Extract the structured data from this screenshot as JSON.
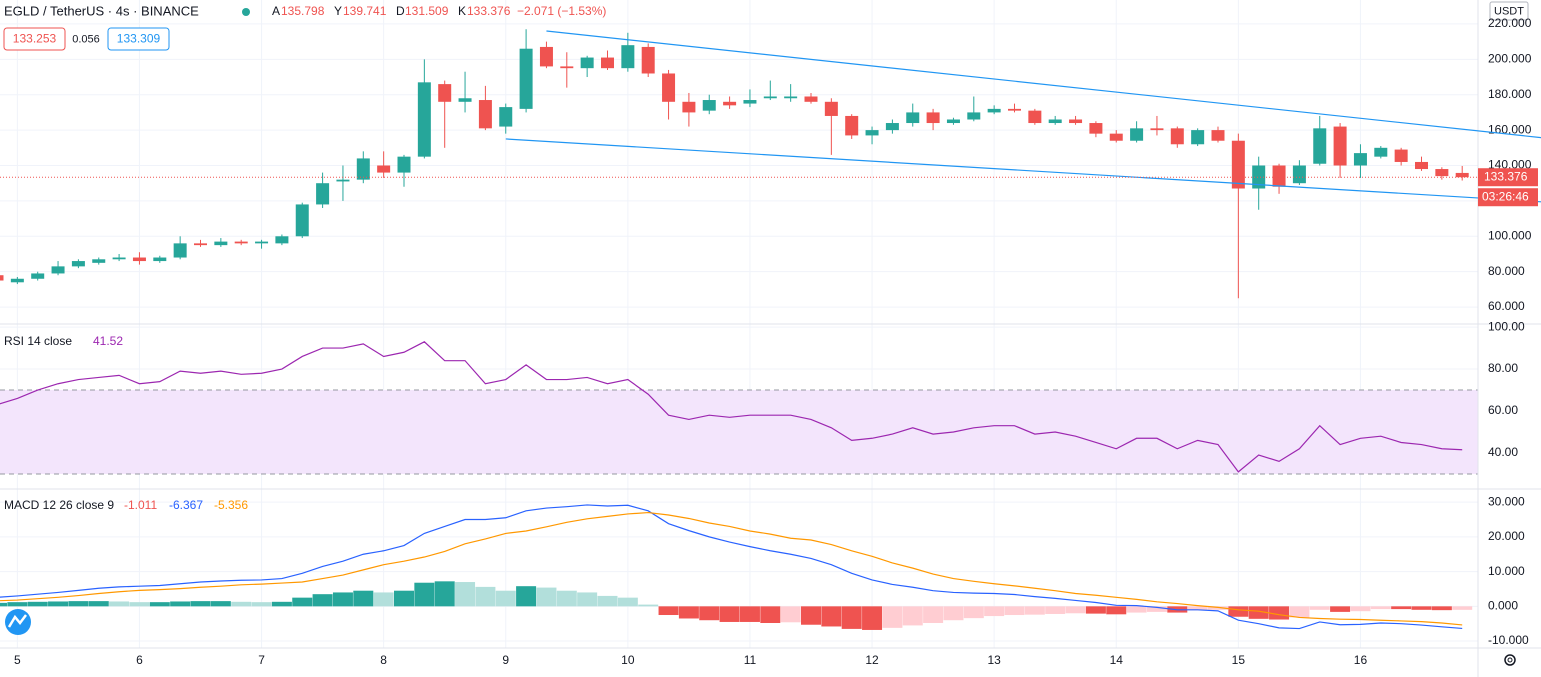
{
  "chart_data": [
    {
      "type": "candlestick",
      "title": "EGLD / TetherUS · 4s · BINANCE",
      "ohlc_header": {
        "open": "A",
        "high": "Y",
        "low": "D",
        "close": "K",
        "change": "−2.071 (−1.53%)"
      },
      "quote_boxes": {
        "bid": "133.253",
        "spread": "0.056",
        "ask": "133.309"
      },
      "currency": "USDT",
      "countdown": "03:26:46",
      "up_color": "#26a69a",
      "down_color": "#ef5350",
      "trendline_color": "#2196f3",
      "categories": [
        null,
        "5",
        null,
        null,
        null,
        null,
        null,
        "6",
        null,
        null,
        null,
        null,
        null,
        "7",
        null,
        null,
        null,
        null,
        null,
        "8",
        null,
        null,
        null,
        null,
        null,
        "9",
        null,
        null,
        null,
        null,
        null,
        "10",
        null,
        null,
        null,
        null,
        null,
        "11",
        null,
        null,
        null,
        null,
        null,
        "12",
        null,
        null,
        null,
        null,
        null,
        "13",
        null,
        null,
        null,
        null,
        null,
        "14",
        null,
        null,
        null,
        null,
        null,
        "15",
        null,
        null,
        null,
        null,
        null,
        "16",
        null,
        null,
        null,
        null,
        null
      ],
      "open": [
        78,
        74,
        76,
        79,
        83,
        85,
        87,
        88,
        86,
        88,
        96,
        95,
        97,
        96,
        96,
        100,
        118,
        131,
        132,
        140,
        136,
        145,
        186,
        176,
        177,
        162,
        172,
        207,
        196,
        195,
        201,
        195,
        207,
        192,
        176,
        171,
        176,
        175,
        178,
        178,
        179,
        176,
        168,
        157,
        160,
        164,
        170,
        164,
        166,
        170,
        172,
        171,
        164,
        166,
        164,
        158,
        154,
        161,
        161,
        152,
        160,
        154,
        127,
        140,
        130,
        141,
        162,
        140,
        145,
        149,
        142,
        138,
        135.798
      ],
      "high": [
        80,
        77,
        80,
        86,
        87,
        88,
        90,
        91,
        89,
        100,
        98,
        99,
        98,
        98,
        101,
        119,
        136,
        140,
        148,
        148,
        146,
        200,
        188,
        193,
        185,
        175,
        217,
        210,
        204,
        202,
        205,
        215,
        209,
        194,
        181,
        180,
        179,
        183,
        188,
        186,
        181,
        178,
        169,
        162,
        166,
        175,
        172,
        167,
        179,
        174,
        175,
        172,
        168,
        168,
        165,
        160,
        165,
        168,
        162,
        161,
        162,
        158,
        145,
        141,
        143,
        168,
        164,
        152,
        151,
        150,
        145,
        139,
        139.741
      ],
      "low": [
        74,
        73,
        75,
        78,
        82,
        84,
        86,
        84,
        85,
        87,
        94,
        94,
        95,
        93,
        95,
        99,
        116,
        120,
        130,
        133,
        128,
        144,
        150,
        170,
        160,
        158,
        170,
        195,
        184,
        190,
        194,
        193,
        190,
        166,
        162,
        169,
        172,
        173,
        177,
        176,
        175,
        146,
        155,
        152,
        158,
        162,
        160,
        163,
        165,
        169,
        170,
        163,
        163,
        163,
        156,
        153,
        153,
        157,
        150,
        151,
        153,
        65,
        115,
        124,
        129,
        140,
        133,
        133,
        144,
        140,
        137,
        132,
        131.509
      ],
      "close": [
        75,
        76,
        79,
        83,
        86,
        87,
        88,
        86,
        88,
        96,
        95,
        97,
        96,
        97,
        100,
        118,
        130,
        132,
        144,
        136,
        145,
        187,
        176,
        178,
        161,
        173,
        206,
        196,
        195,
        201,
        195,
        208,
        192,
        176,
        170,
        177,
        174,
        177,
        179,
        179,
        176,
        168,
        157,
        160,
        164,
        170,
        164,
        166,
        170,
        172,
        171,
        164,
        166,
        164,
        158,
        154,
        161,
        160,
        152,
        160,
        154,
        127,
        140,
        128,
        140,
        161,
        140,
        147,
        150,
        142,
        138,
        134,
        133.376
      ],
      "trendlines": [
        {
          "start": [
            27,
            216
          ],
          "end": [
            76,
            155.6
          ]
        },
        {
          "start": [
            25,
            155
          ],
          "end": [
            76,
            119.4
          ]
        }
      ],
      "ylim": [
        51,
        230.7
      ],
      "yticks": [
        {
          "value": 60,
          "label": "60.000"
        },
        {
          "value": 80,
          "label": "80.000"
        },
        {
          "value": 100,
          "label": "100.000"
        },
        {
          "value": 120,
          "label": "120.000"
        },
        {
          "value": 140,
          "label": "140.000"
        },
        {
          "value": 160,
          "label": "160.000"
        },
        {
          "value": 180,
          "label": "180.000"
        },
        {
          "value": 200,
          "label": "200.000"
        },
        {
          "value": 220,
          "label": "220.000"
        }
      ],
      "grid": true
    },
    {
      "type": "line",
      "title": "RSI 14 close",
      "color": "#9c27b0",
      "values": [
        63,
        66,
        70,
        73,
        75,
        76,
        77,
        73,
        74,
        79,
        78,
        79,
        77.5,
        78,
        80,
        86,
        90,
        90,
        92,
        86,
        88,
        93,
        84,
        84,
        73,
        75,
        82,
        75,
        75,
        76,
        73,
        75,
        68,
        58,
        56,
        58,
        57,
        58,
        58,
        58,
        56,
        52,
        46,
        47,
        49,
        52,
        49,
        50,
        52,
        53,
        53,
        49,
        50,
        48,
        45,
        42,
        47,
        47,
        42,
        46,
        44,
        31,
        39,
        36,
        42,
        53,
        44,
        47,
        48,
        45,
        44,
        42,
        41.52
      ],
      "bands": [
        30,
        70
      ],
      "band_color": "#f3e5fc",
      "ylim": [
        23.3,
        101
      ],
      "yticks": [
        {
          "value": 40,
          "label": "40.00"
        },
        {
          "value": 60,
          "label": "60.00"
        },
        {
          "value": 80,
          "label": "80.00"
        },
        {
          "value": 100,
          "label": "100.00"
        }
      ],
      "grid": true
    },
    {
      "type": "macd",
      "title": "MACD 12 26 close 9",
      "histogram": [
        1,
        1.2,
        1.3,
        1.4,
        1.5,
        1.5,
        1.4,
        1.2,
        1.2,
        1.4,
        1.5,
        1.5,
        1.3,
        1.2,
        1.3,
        2.5,
        3.5,
        4,
        4.5,
        4,
        4.5,
        6.8,
        7.2,
        7,
        5.6,
        4.5,
        5.8,
        5.4,
        4.5,
        4,
        3,
        2.5,
        0.5,
        -2.5,
        -3.5,
        -4,
        -4.5,
        -4.5,
        -4.8,
        -4.6,
        -5.3,
        -5.8,
        -6.5,
        -6.8,
        -6.2,
        -5.5,
        -4.8,
        -4,
        -3.4,
        -2.8,
        -2.5,
        -2.4,
        -2.2,
        -2,
        -2.1,
        -2.3,
        -1.8,
        -1.6,
        -1.8,
        -1.2,
        -1,
        -3,
        -3.6,
        -3.8,
        -3.2,
        -1,
        -1.6,
        -1.4,
        -0.8,
        -0.8,
        -1,
        -1.1,
        -1.011
      ],
      "histogram_colors": [
        "#26a69a",
        "#b2dfdb",
        "#ef5350",
        "#ffcdd2"
      ],
      "series": [
        {
          "name": "MACD",
          "color": "#2962ff",
          "values": [
            2.6,
            3,
            3.5,
            4,
            4.6,
            5.2,
            5.6,
            5.8,
            6,
            6.5,
            7,
            7.3,
            7.5,
            7.6,
            8,
            9.5,
            11.5,
            13,
            15,
            16,
            17.5,
            21,
            23,
            25,
            25,
            25.5,
            27.5,
            28.3,
            28.7,
            29.2,
            28.9,
            29.1,
            27.5,
            23.8,
            21.8,
            20,
            18.5,
            17.2,
            16,
            15,
            13.8,
            12,
            9.5,
            7.6,
            6.3,
            5.5,
            4.5,
            4,
            3.8,
            3.7,
            3.4,
            2.8,
            2.3,
            1.7,
            1.1,
            0.3,
            0.2,
            -0.3,
            -1,
            -1,
            -1.3,
            -4,
            -5,
            -6.2,
            -6.4,
            -4.5,
            -5.3,
            -5.2,
            -4.8,
            -5,
            -5.4,
            -5.9,
            -6.367
          ]
        },
        {
          "name": "Signal",
          "color": "#ff9800",
          "values": [
            1.6,
            1.8,
            2.2,
            2.6,
            3.1,
            3.7,
            4.2,
            4.6,
            4.8,
            5.1,
            5.5,
            5.8,
            6.2,
            6.4,
            6.7,
            7,
            8,
            9,
            10.5,
            12,
            13,
            14.2,
            15.8,
            18,
            19.4,
            21,
            21.7,
            22.9,
            24.2,
            25.2,
            25.9,
            26.6,
            27,
            26.3,
            25.3,
            24,
            23,
            21.7,
            20.8,
            19.6,
            19.1,
            17.8,
            16,
            14.4,
            12.5,
            11,
            9.3,
            8,
            7.2,
            6.5,
            5.9,
            5.2,
            4.5,
            3.7,
            3.2,
            2.6,
            2,
            1.3,
            0.8,
            0.2,
            -0.3,
            -1,
            -1.4,
            -2.4,
            -3.2,
            -3.5,
            -3.7,
            -3.8,
            -4,
            -4.2,
            -4.4,
            -4.8,
            -5.356
          ]
        }
      ],
      "ylim": [
        -12,
        33.5
      ],
      "yticks": [
        {
          "value": -10,
          "label": "-10.000"
        },
        {
          "value": 0,
          "label": "0.000"
        },
        {
          "value": 10,
          "label": "10.000"
        },
        {
          "value": 20,
          "label": "20.000"
        },
        {
          "value": 30,
          "label": "30.000"
        }
      ],
      "grid": true
    }
  ]
}
